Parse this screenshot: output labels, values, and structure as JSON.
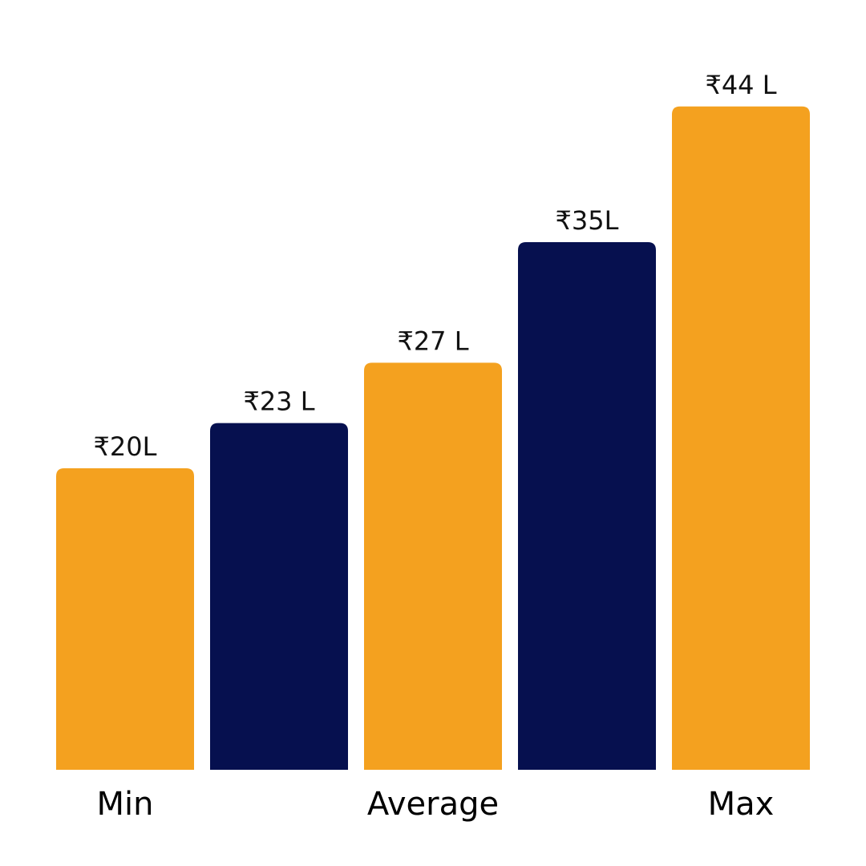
{
  "chart_data": {
    "type": "bar",
    "title": "",
    "xlabel": "",
    "ylabel": "",
    "ylim": [
      0,
      51
    ],
    "grid": false,
    "legend": "none",
    "categories": [
      "Min",
      "",
      "Average",
      "",
      "Max"
    ],
    "values": [
      20,
      23,
      27,
      35,
      44
    ],
    "data_labels": [
      "₹20L",
      "₹23 L",
      "₹27 L",
      "₹35L",
      "₹44 L"
    ],
    "bar_colors": [
      "#F4A11F",
      "#06104F",
      "#F4A11F",
      "#06104F",
      "#F4A11F"
    ]
  }
}
